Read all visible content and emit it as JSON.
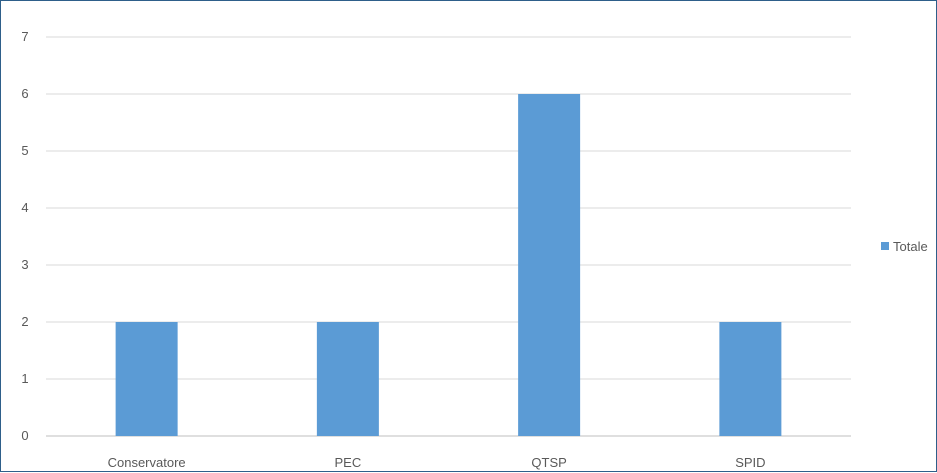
{
  "chart_data": {
    "type": "bar",
    "title": "",
    "xlabel": "",
    "ylabel": "",
    "categories": [
      "Conservatore",
      "PEC",
      "QTSP",
      "SPID"
    ],
    "series": [
      {
        "name": "Totale",
        "values": [
          2,
          2,
          6,
          2
        ],
        "color": "#5b9bd5"
      }
    ],
    "ylim": [
      0,
      7
    ],
    "yticks": [
      0,
      1,
      2,
      3,
      4,
      5,
      6,
      7
    ],
    "grid": true,
    "legend": "right"
  }
}
